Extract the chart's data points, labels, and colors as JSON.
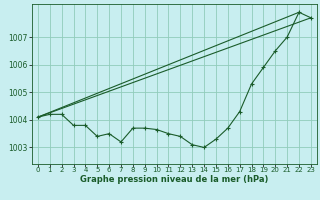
{
  "background_color": "#c8eef0",
  "grid_color": "#90ccbb",
  "line_color": "#1a5c2a",
  "xlabel": "Graphe pression niveau de la mer (hPa)",
  "xlim": [
    -0.5,
    23.5
  ],
  "ylim": [
    1002.4,
    1008.2
  ],
  "yticks": [
    1003,
    1004,
    1005,
    1006,
    1007
  ],
  "xticks": [
    0,
    1,
    2,
    3,
    4,
    5,
    6,
    7,
    8,
    9,
    10,
    11,
    12,
    13,
    14,
    15,
    16,
    17,
    18,
    19,
    20,
    21,
    22,
    23
  ],
  "series": [
    {
      "x": [
        0,
        1,
        2,
        3,
        4,
        5,
        6,
        7,
        8,
        9,
        10,
        11,
        12,
        13,
        14,
        15,
        16,
        17,
        18,
        19,
        20,
        21,
        22,
        23
      ],
      "y": [
        1004.1,
        1004.2,
        1004.2,
        1003.8,
        1003.8,
        1003.4,
        1003.5,
        1003.2,
        1003.7,
        1003.7,
        1003.65,
        1003.5,
        1003.4,
        1003.1,
        1003.0,
        1003.3,
        1003.7,
        1004.3,
        1005.3,
        1005.9,
        1006.5,
        1007.0,
        1007.9,
        1007.7
      ]
    },
    {
      "x": [
        0,
        23
      ],
      "y": [
        1004.1,
        1007.7
      ]
    },
    {
      "x": [
        0,
        22
      ],
      "y": [
        1004.1,
        1007.9
      ]
    }
  ]
}
